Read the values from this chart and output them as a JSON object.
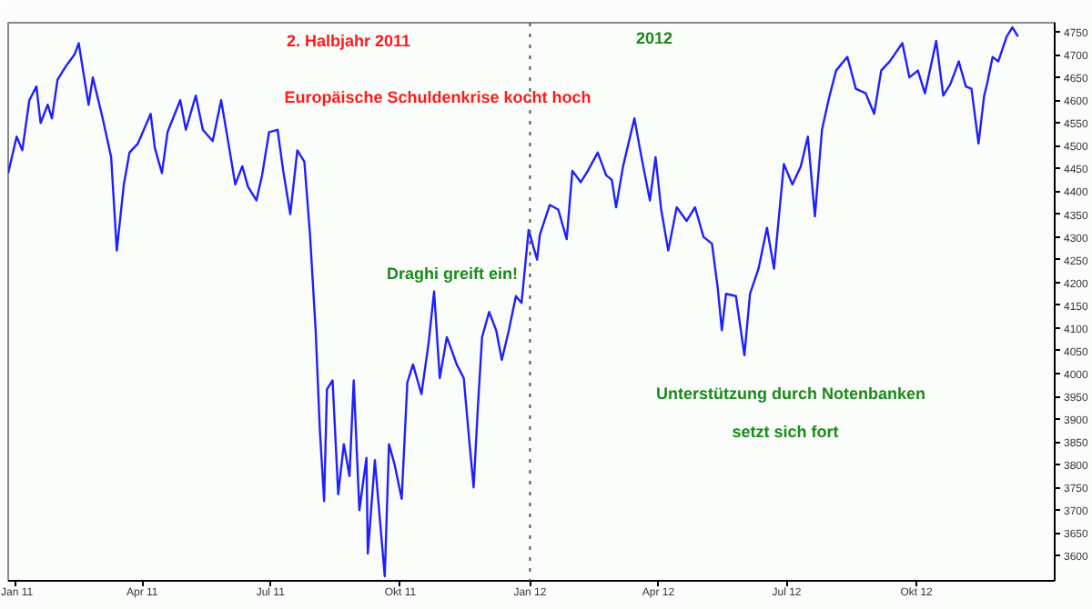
{
  "chart_data": {
    "type": "line",
    "x": [
      "2010-12-27",
      "2011-01-02",
      "2011-01-06",
      "2011-01-11",
      "2011-01-16",
      "2011-01-19",
      "2011-01-24",
      "2011-01-27",
      "2011-01-31",
      "2011-02-06",
      "2011-02-12",
      "2011-02-15",
      "2011-02-22",
      "2011-02-25",
      "2011-03-04",
      "2011-03-10",
      "2011-03-14",
      "2011-03-19",
      "2011-03-23",
      "2011-03-29",
      "2011-04-07",
      "2011-04-10",
      "2011-04-15",
      "2011-04-19",
      "2011-04-28",
      "2011-05-02",
      "2011-05-09",
      "2011-05-14",
      "2011-05-21",
      "2011-05-27",
      "2011-06-02",
      "2011-06-06",
      "2011-06-11",
      "2011-06-15",
      "2011-06-21",
      "2011-06-25",
      "2011-06-30",
      "2011-07-06",
      "2011-07-10",
      "2011-07-15",
      "2011-07-20",
      "2011-07-25",
      "2011-07-29",
      "2011-08-02",
      "2011-08-05",
      "2011-08-08",
      "2011-08-10",
      "2011-08-14",
      "2011-08-18",
      "2011-08-22",
      "2011-08-26",
      "2011-08-29",
      "2011-09-02",
      "2011-09-07",
      "2011-09-08",
      "2011-09-13",
      "2011-09-16",
      "2011-09-20",
      "2011-09-23",
      "2011-09-27",
      "2011-10-02",
      "2011-10-06",
      "2011-10-10",
      "2011-10-16",
      "2011-10-21",
      "2011-10-25",
      "2011-10-29",
      "2011-11-03",
      "2011-11-06",
      "2011-11-10",
      "2011-11-15",
      "2011-11-19",
      "2011-11-22",
      "2011-11-25",
      "2011-11-28",
      "2011-12-03",
      "2011-12-08",
      "2011-12-12",
      "2011-12-17",
      "2011-12-22",
      "2011-12-26",
      "2011-12-31",
      "2012-01-06",
      "2012-01-08",
      "2012-01-15",
      "2012-01-21",
      "2012-01-27",
      "2012-01-31",
      "2012-02-06",
      "2012-02-11",
      "2012-02-18",
      "2012-02-24",
      "2012-02-28",
      "2012-03-02",
      "2012-03-07",
      "2012-03-15",
      "2012-03-20",
      "2012-03-26",
      "2012-03-30",
      "2012-04-03",
      "2012-04-08",
      "2012-04-14",
      "2012-04-21",
      "2012-04-27",
      "2012-05-03",
      "2012-05-09",
      "2012-05-13",
      "2012-05-16",
      "2012-05-19",
      "2012-05-26",
      "2012-06-01",
      "2012-06-05",
      "2012-06-11",
      "2012-06-17",
      "2012-06-22",
      "2012-06-29",
      "2012-07-05",
      "2012-07-11",
      "2012-07-16",
      "2012-07-21",
      "2012-07-26",
      "2012-07-31",
      "2012-08-05",
      "2012-08-13",
      "2012-08-19",
      "2012-08-26",
      "2012-09-01",
      "2012-09-06",
      "2012-09-12",
      "2012-09-21",
      "2012-09-26",
      "2012-10-02",
      "2012-10-07",
      "2012-10-15",
      "2012-10-20",
      "2012-10-25",
      "2012-10-31",
      "2012-11-05",
      "2012-11-09",
      "2012-11-14",
      "2012-11-18",
      "2012-11-20",
      "2012-11-24",
      "2012-11-28",
      "2012-12-04",
      "2012-12-08",
      "2012-12-12"
    ],
    "series": [
      {
        "color": "#1f1fff",
        "values": [
          4440,
          4520,
          4490,
          4600,
          4630,
          4550,
          4590,
          4560,
          4645,
          4675,
          4700,
          4725,
          4590,
          4650,
          4560,
          4475,
          4270,
          4415,
          4485,
          4505,
          4570,
          4495,
          4440,
          4530,
          4600,
          4535,
          4610,
          4535,
          4510,
          4600,
          4490,
          4415,
          4455,
          4410,
          4380,
          4435,
          4530,
          4535,
          4445,
          4350,
          4490,
          4465,
          4305,
          4095,
          3875,
          3720,
          3965,
          3985,
          3735,
          3845,
          3775,
          3985,
          3700,
          3815,
          3605,
          3810,
          3700,
          3555,
          3845,
          3800,
          3725,
          3980,
          4020,
          3955,
          4065,
          4180,
          3990,
          4080,
          4055,
          4020,
          3990,
          3850,
          3750,
          3925,
          4080,
          4135,
          4095,
          4030,
          4095,
          4170,
          4155,
          4315,
          4250,
          4305,
          4370,
          4360,
          4295,
          4445,
          4420,
          4445,
          4485,
          4435,
          4425,
          4365,
          4455,
          4560,
          4475,
          4380,
          4475,
          4360,
          4270,
          4365,
          4335,
          4365,
          4300,
          4285,
          4190,
          4095,
          4175,
          4170,
          4040,
          4175,
          4230,
          4320,
          4230,
          4460,
          4415,
          4455,
          4520,
          4345,
          4535,
          4605,
          4665,
          4695,
          4625,
          4615,
          4570,
          4665,
          4685,
          4725,
          4650,
          4665,
          4615,
          4730,
          4610,
          4635,
          4685,
          4630,
          4625,
          4505,
          4610,
          4635,
          4695,
          4685,
          4740,
          4760,
          4740
        ]
      }
    ],
    "xlim": [
      "2010-12-27",
      "2013-01-07"
    ],
    "xticks": [
      {
        "value": "2011-01-01",
        "label": "Jan 11"
      },
      {
        "value": "2011-04-01",
        "label": "Apr 11"
      },
      {
        "value": "2011-07-01",
        "label": "Jul 11"
      },
      {
        "value": "2011-10-01",
        "label": "Okt 11"
      },
      {
        "value": "2012-01-01",
        "label": "Jan 12"
      },
      {
        "value": "2012-04-01",
        "label": "Apr 12"
      },
      {
        "value": "2012-07-01",
        "label": "Jul 12"
      },
      {
        "value": "2012-10-01",
        "label": "Okt 12"
      }
    ],
    "ylim": [
      3545,
      4770
    ],
    "yticks": [
      3600,
      3650,
      3700,
      3750,
      3800,
      3850,
      3900,
      3950,
      4000,
      4050,
      4100,
      4150,
      4200,
      4250,
      4300,
      4350,
      4400,
      4450,
      4500,
      4550,
      4600,
      4650,
      4700,
      4750
    ],
    "ref_lines": [
      {
        "axis": "x",
        "value": "2012-01-01",
        "color": "#555555",
        "line_style": "dotted"
      }
    ],
    "annotations": [
      "2. Halbjahr 2011",
      "Europäische Schuldenkrise kocht hoch",
      "2012",
      "Draghi greift ein!",
      "Unterstützung durch Notenbanken",
      "setzt sich fort"
    ],
    "grid": false,
    "marker": "none",
    "line_style": "solid"
  }
}
